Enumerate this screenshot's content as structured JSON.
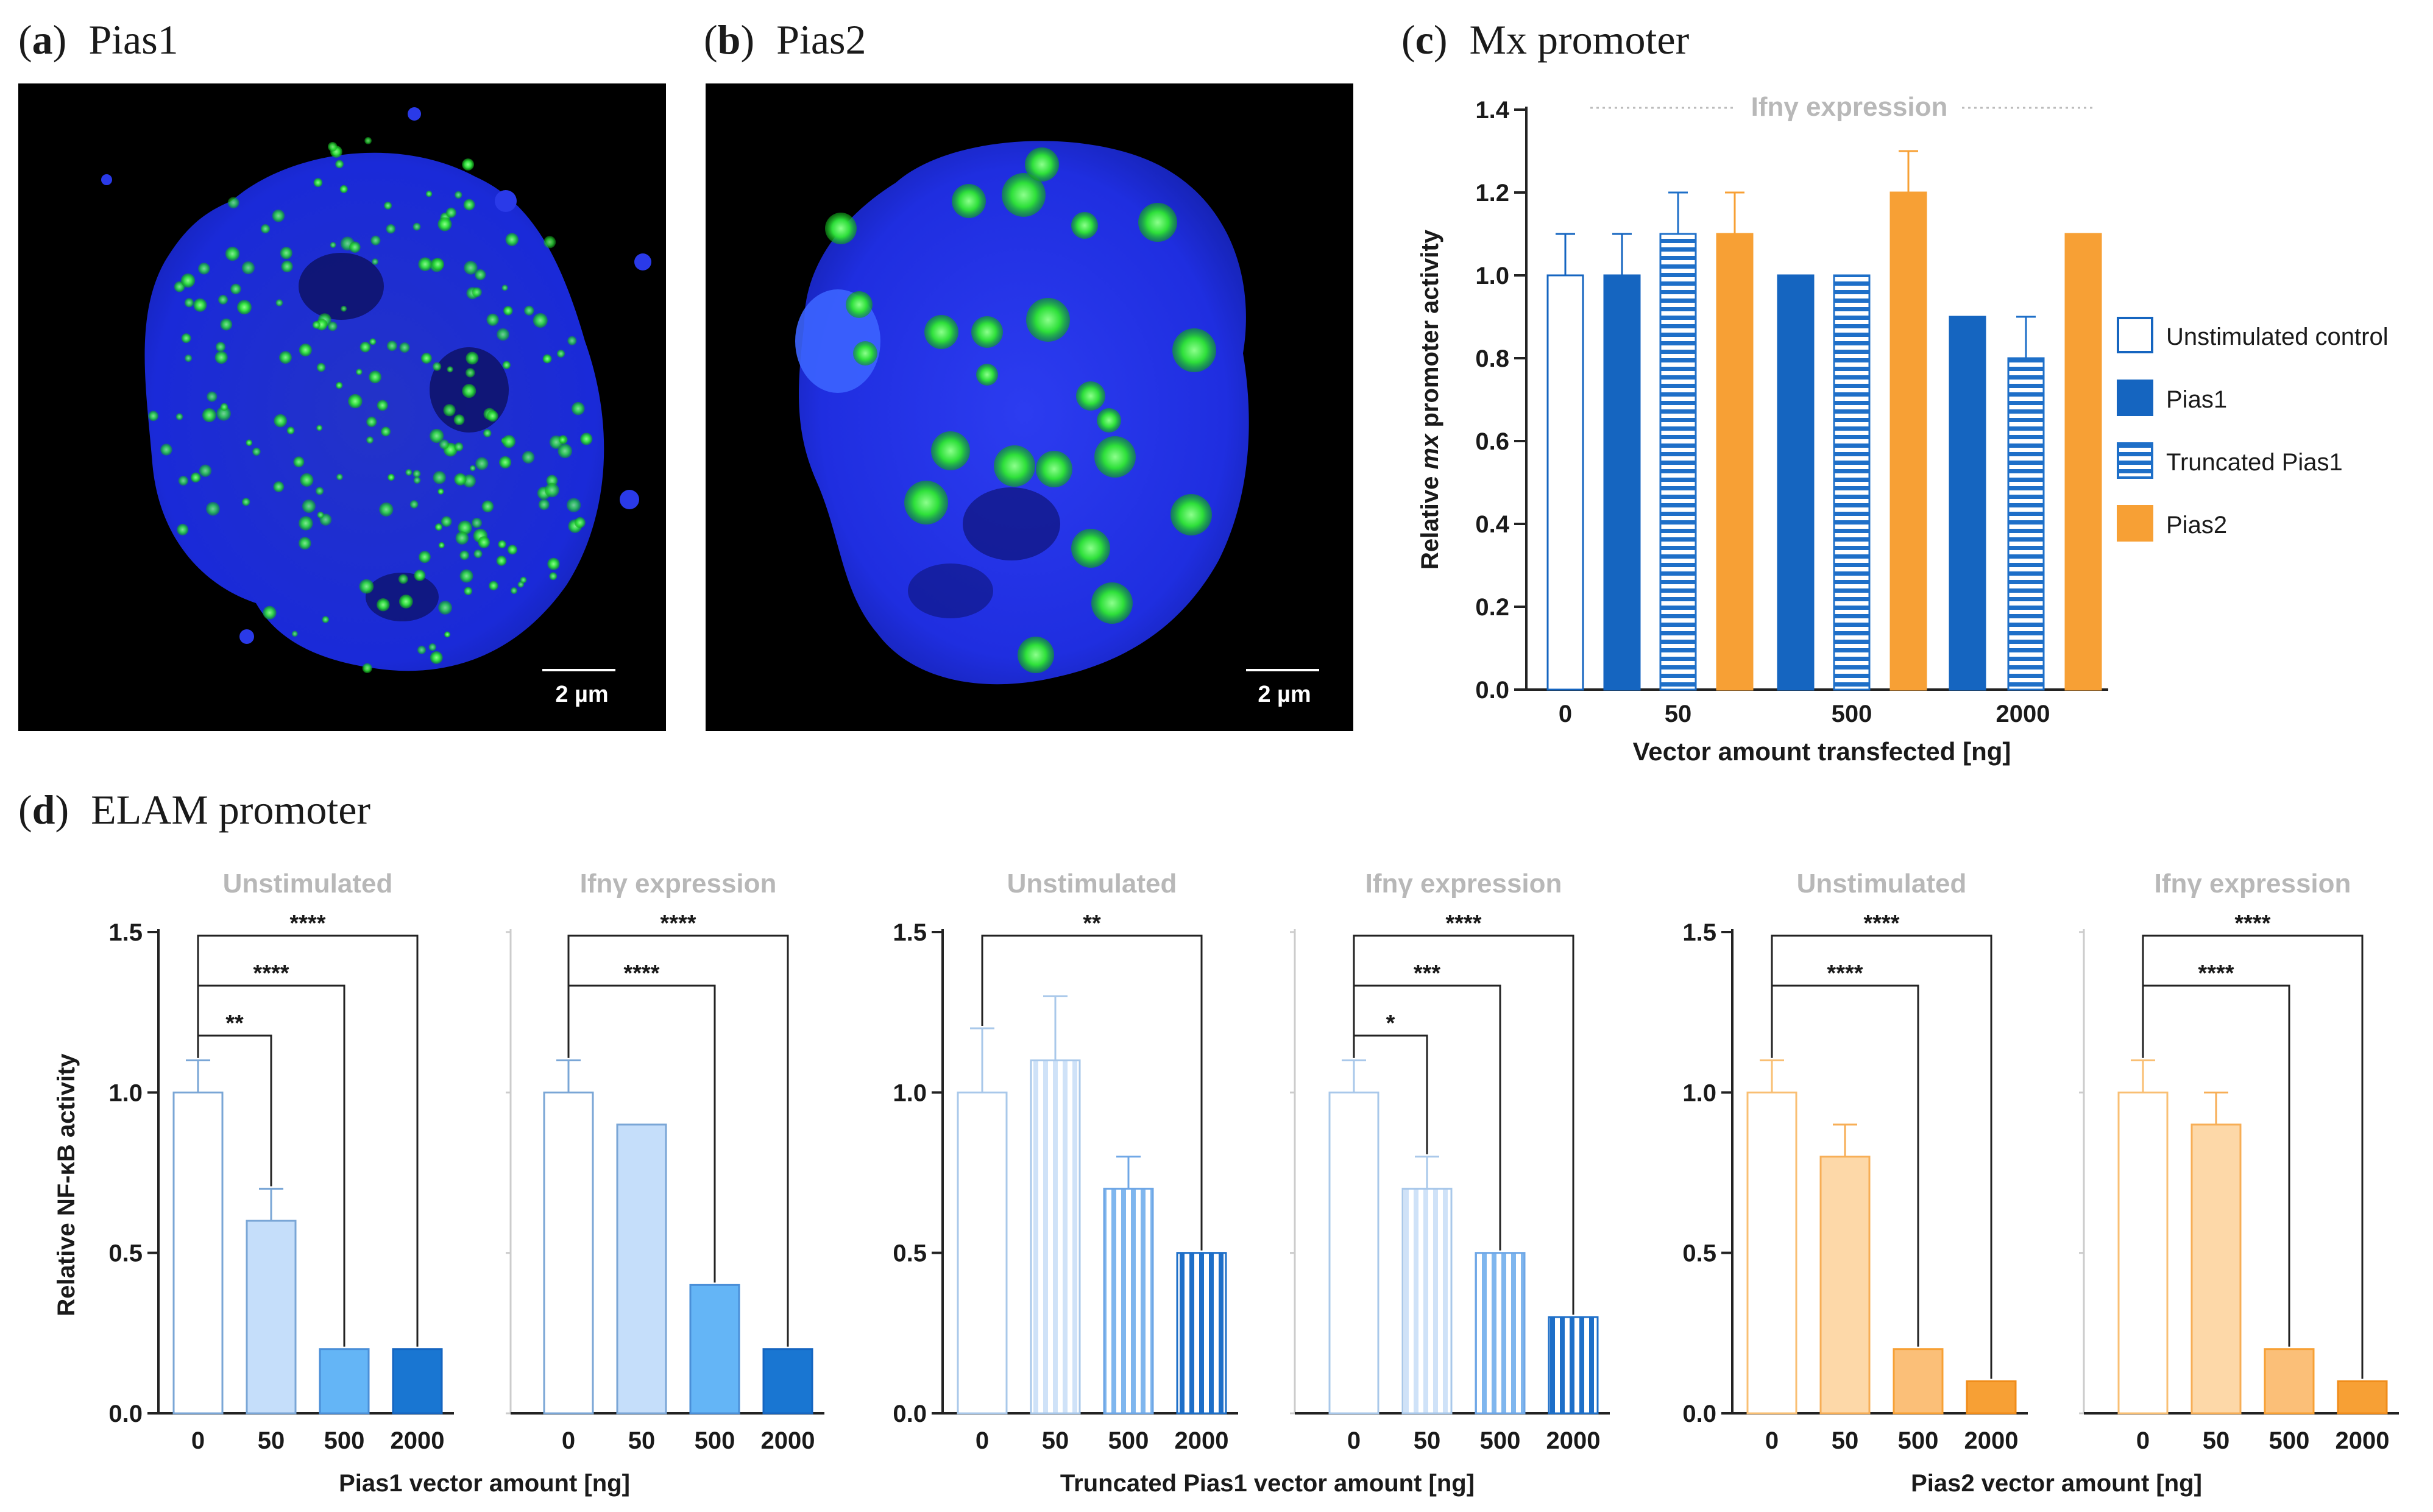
{
  "panels": {
    "a": {
      "letter": "a",
      "title": "Pias1",
      "scale_bar": "2 µm"
    },
    "b": {
      "letter": "b",
      "title": "Pias2",
      "scale_bar": "2 µm"
    },
    "c": {
      "letter": "c",
      "title": "Mx promoter"
    },
    "d": {
      "letter": "d",
      "title": "ELAM promoter"
    }
  },
  "colors": {
    "pias1": "#1565c0",
    "pias1_light": "#c5defa",
    "pias1_mid": "#64b5f6",
    "truncated_line": "#1e6fc8",
    "pias2": "#f7a035",
    "pias2_light": "#fddcb0",
    "pias2_mid": "#fbc07a",
    "subtitle_grey": "#b8b8b8",
    "cell_blue": "#1f2fd6",
    "cell_green": "#22e02a"
  },
  "chart_data": [
    {
      "id": "c",
      "type": "bar",
      "title": "Mx promoter",
      "subtitle": "Ifnγ expression",
      "ylabel_pre": "Relative ",
      "ylabel_italic": "mx",
      "ylabel_post": " promoter activity",
      "xlabel": "Vector amount transfected [ng]",
      "ylim": [
        0,
        1.4
      ],
      "yticks": [
        "0.0",
        "0.2",
        "0.4",
        "0.6",
        "0.8",
        "1.0",
        "1.2",
        "1.4"
      ],
      "groups": [
        "0",
        "50",
        "500",
        "2000"
      ],
      "legend": [
        "Unstimulated control",
        "Pias1",
        "Truncated Pias1",
        "Pias2"
      ],
      "bars": [
        {
          "group": "0",
          "series": "Unstimulated control",
          "value": 1.0,
          "error": 0.1
        },
        {
          "group": "50",
          "series": "Pias1",
          "value": 1.0,
          "error": 0.1
        },
        {
          "group": "50",
          "series": "Truncated Pias1",
          "value": 1.1,
          "error": 0.1
        },
        {
          "group": "50",
          "series": "Pias2",
          "value": 1.1,
          "error": 0.1
        },
        {
          "group": "500",
          "series": "Pias1",
          "value": 1.0,
          "error": 0
        },
        {
          "group": "500",
          "series": "Truncated Pias1",
          "value": 1.0,
          "error": 0
        },
        {
          "group": "500",
          "series": "Pias2",
          "value": 1.2,
          "error": 0.1
        },
        {
          "group": "2000",
          "series": "Pias1",
          "value": 0.9,
          "error": 0
        },
        {
          "group": "2000",
          "series": "Truncated Pias1",
          "value": 0.8,
          "error": 0.1
        },
        {
          "group": "2000",
          "series": "Pias2",
          "value": 1.1,
          "error": 0
        }
      ]
    },
    {
      "id": "d",
      "type": "bar",
      "title": "ELAM promoter",
      "ylabel": "Relative NF-κB activity",
      "ylim": [
        0,
        1.5
      ],
      "yticks": [
        "0.0",
        "0.5",
        "1.0",
        "1.5"
      ],
      "categories": [
        "0",
        "50",
        "500",
        "2000"
      ],
      "groups": [
        {
          "xlabel": "Pias1 vector amount [ng]",
          "family": "pias1",
          "subplots": [
            {
              "subtitle": "Unstimulated",
              "values": [
                1.0,
                0.6,
                0.2,
                0.2
              ],
              "errors": [
                0.1,
                0.1,
                0,
                0
              ],
              "sig": [
                {
                  "to": 1,
                  "label": "**"
                },
                {
                  "to": 2,
                  "label": "****"
                },
                {
                  "to": 3,
                  "label": "****"
                }
              ]
            },
            {
              "subtitle": "Ifnγ expression",
              "values": [
                1.0,
                0.9,
                0.4,
                0.2
              ],
              "errors": [
                0.1,
                0,
                0,
                0
              ],
              "sig": [
                {
                  "to": 2,
                  "label": "****"
                },
                {
                  "to": 3,
                  "label": "****"
                }
              ]
            }
          ]
        },
        {
          "xlabel": "Truncated Pias1 vector amount [ng]",
          "family": "truncated",
          "subplots": [
            {
              "subtitle": "Unstimulated",
              "values": [
                1.0,
                1.1,
                0.7,
                0.5
              ],
              "errors": [
                0.2,
                0.2,
                0.1,
                0
              ],
              "sig": [
                {
                  "to": 3,
                  "label": "**"
                }
              ]
            },
            {
              "subtitle": "Ifnγ expression",
              "values": [
                1.0,
                0.7,
                0.5,
                0.3
              ],
              "errors": [
                0.1,
                0.1,
                0,
                0
              ],
              "sig": [
                {
                  "to": 1,
                  "label": "*"
                },
                {
                  "to": 2,
                  "label": "***"
                },
                {
                  "to": 3,
                  "label": "****"
                }
              ]
            }
          ]
        },
        {
          "xlabel": "Pias2 vector amount [ng]",
          "family": "pias2",
          "subplots": [
            {
              "subtitle": "Unstimulated",
              "values": [
                1.0,
                0.8,
                0.2,
                0.1
              ],
              "errors": [
                0.1,
                0.1,
                0,
                0
              ],
              "sig": [
                {
                  "to": 2,
                  "label": "****"
                },
                {
                  "to": 3,
                  "label": "****"
                }
              ]
            },
            {
              "subtitle": "Ifnγ expression",
              "values": [
                1.0,
                0.9,
                0.2,
                0.1
              ],
              "errors": [
                0.1,
                0.1,
                0,
                0
              ],
              "sig": [
                {
                  "to": 2,
                  "label": "****"
                },
                {
                  "to": 3,
                  "label": "****"
                }
              ]
            }
          ]
        }
      ]
    }
  ]
}
